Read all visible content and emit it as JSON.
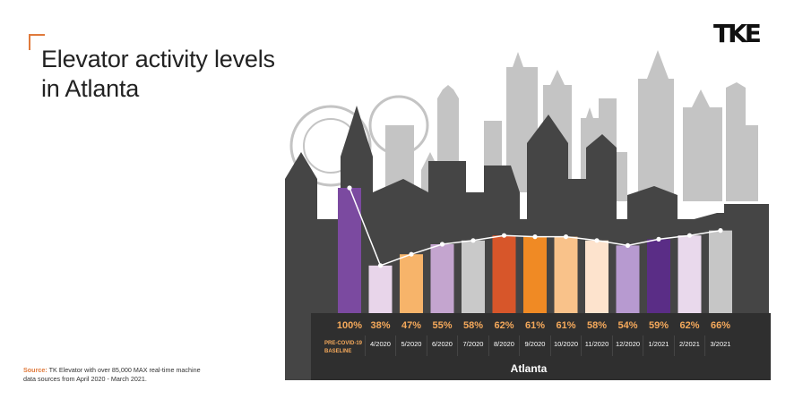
{
  "title": {
    "line1": "Elevator activity levels",
    "line2": "in Atlanta"
  },
  "logo": {
    "text": "TKE"
  },
  "source": {
    "label": "Source:",
    "text": " TK Elevator with over 85,000 MAX real-time machine data sources from April 2020 - March 2021."
  },
  "chart_data": {
    "type": "bar",
    "title": "Elevator activity levels in Atlanta",
    "xlabel": "Atlanta",
    "ylabel": "",
    "ylim": [
      0,
      100
    ],
    "categories": [
      "PRE-COVID-19 BASELINE",
      "4/2020",
      "5/2020",
      "6/2020",
      "7/2020",
      "8/2020",
      "9/2020",
      "10/2020",
      "11/2020",
      "12/2020",
      "1/2021",
      "2/2021",
      "3/2021"
    ],
    "values": [
      100,
      38,
      47,
      55,
      58,
      62,
      61,
      61,
      58,
      54,
      59,
      62,
      66
    ],
    "value_labels": [
      "100%",
      "38%",
      "47%",
      "55%",
      "58%",
      "62%",
      "61%",
      "61%",
      "58%",
      "54%",
      "59%",
      "62%",
      "66%"
    ],
    "line_overlay": true,
    "colors": [
      "#7b4aa0",
      "#e8d5ea",
      "#f7b46a",
      "#c4a5cf",
      "#c9c9c9",
      "#d7562a",
      "#f08a24",
      "#f9c28a",
      "#fde3cd",
      "#b79ad0",
      "#5a2d86",
      "#e9d9ec",
      "#c6c6c6"
    ],
    "value_label_color": "#f5a95b",
    "footer_color": "#2f2f2f"
  }
}
